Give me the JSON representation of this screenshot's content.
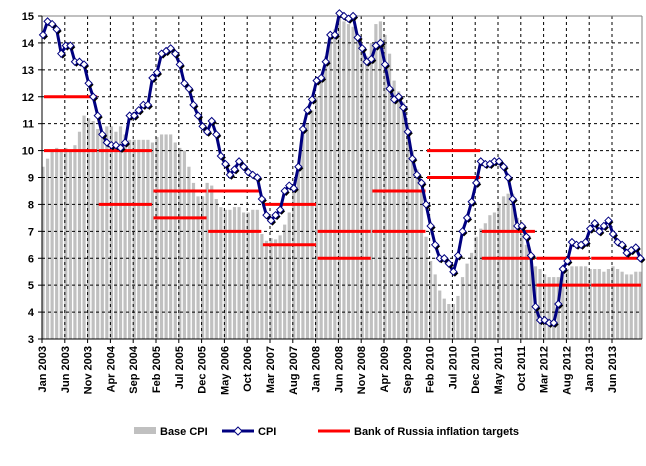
{
  "chart_data": {
    "type": "bar+line",
    "title": "",
    "xlabel": "",
    "ylabel": "",
    "ylim": [
      3,
      15
    ],
    "yticks": [
      3,
      4,
      5,
      6,
      7,
      8,
      9,
      10,
      11,
      12,
      13,
      14,
      15
    ],
    "grid": true,
    "legend_position": "bottom",
    "start": "Jan 2003",
    "x_tick_labels": [
      "Jan 2003",
      "Jun 2003",
      "Nov 2003",
      "Apr 2004",
      "Sep 2004",
      "Feb 2005",
      "Jul 2005",
      "Dec 2005",
      "May 2006",
      "Oct 2006",
      "Mar 2007",
      "Aug 2007",
      "Jan 2008",
      "Jun 2008",
      "Nov 2008",
      "Apr 2009",
      "Sep 2009",
      "Feb 2010",
      "Jul 2010",
      "Dec 2010",
      "May 2011",
      "Oct 2011",
      "Mar 2012",
      "Aug 2012",
      "Jan 2013",
      "Jun 2013"
    ],
    "series": [
      {
        "name": "Base CPI",
        "type": "bar",
        "color": "#c0c0c0",
        "values": [
          9.4,
          9.7,
          10.0,
          10.1,
          10.0,
          10.1,
          10.0,
          10.2,
          10.7,
          11.3,
          11.2,
          11.1,
          10.8,
          10.5,
          10.9,
          10.9,
          10.7,
          10.9,
          10.6,
          10.4,
          10.4,
          10.4,
          10.4,
          10.4,
          10.3,
          10.5,
          10.6,
          10.6,
          10.6,
          10.3,
          10.1,
          10.0,
          9.4,
          8.8,
          8.3,
          8.3,
          8.8,
          8.7,
          8.2,
          7.9,
          7.8,
          7.8,
          7.9,
          7.9,
          7.7,
          7.7,
          7.8,
          7.8,
          6.9,
          6.65,
          6.75,
          6.7,
          6.85,
          7.25,
          7.7,
          8.6,
          9.3,
          10.8,
          11.0,
          11.5,
          12.0,
          12.6,
          13.5,
          14.1,
          14.5,
          15.0,
          14.8,
          14.7,
          14.6,
          14.2,
          13.7,
          13.5,
          14.0,
          14.7,
          14.8,
          14.3,
          13.6,
          12.6,
          12.2,
          11.8,
          11.0,
          10.0,
          9.3,
          8.5,
          6.8,
          5.9,
          5.4,
          4.8,
          4.5,
          4.3,
          4.3,
          4.6,
          5.3,
          5.8,
          6.2,
          6.8,
          7.1,
          7.3,
          7.6,
          7.7,
          8.0,
          8.3,
          8.4,
          8.4,
          7.5,
          6.9,
          6.5,
          6.2,
          5.7,
          5.6,
          5.4,
          5.3,
          5.3,
          5.3,
          5.5,
          5.6,
          5.7,
          5.7,
          5.7,
          5.7,
          5.6,
          5.6,
          5.6,
          5.5,
          5.6,
          5.7,
          5.6,
          5.5,
          5.4,
          5.4,
          5.5,
          5.5
        ]
      },
      {
        "name": "CPI",
        "type": "line",
        "color": "#000080",
        "values": [
          14.3,
          14.8,
          14.7,
          14.5,
          13.6,
          13.9,
          13.9,
          13.3,
          13.3,
          13.2,
          12.5,
          12.0,
          11.3,
          10.6,
          10.3,
          10.2,
          10.2,
          10.1,
          10.3,
          11.3,
          11.3,
          11.5,
          11.7,
          11.7,
          12.7,
          12.9,
          13.6,
          13.7,
          13.8,
          13.6,
          13.2,
          12.5,
          12.3,
          11.7,
          11.3,
          10.9,
          10.7,
          11.1,
          10.6,
          9.8,
          9.5,
          9.1,
          9.3,
          9.6,
          9.4,
          9.2,
          9.1,
          9.0,
          8.2,
          7.6,
          7.4,
          7.6,
          7.8,
          8.5,
          8.7,
          8.6,
          9.4,
          10.8,
          11.5,
          11.9,
          12.6,
          12.7,
          13.3,
          14.3,
          14.3,
          15.1,
          15.0,
          14.9,
          15.0,
          14.2,
          13.8,
          13.3,
          13.4,
          13.9,
          14.0,
          13.2,
          12.3,
          11.9,
          12.0,
          11.6,
          10.7,
          9.7,
          9.1,
          8.8,
          8.0,
          7.2,
          6.5,
          6.0,
          6.0,
          5.8,
          5.5,
          6.1,
          7.0,
          7.5,
          8.1,
          8.8,
          9.6,
          9.5,
          9.5,
          9.6,
          9.6,
          9.4,
          9.0,
          8.2,
          7.2,
          7.2,
          6.8,
          6.1,
          4.2,
          3.7,
          3.7,
          3.6,
          3.6,
          4.3,
          5.6,
          5.9,
          6.6,
          6.5,
          6.5,
          6.6,
          7.1,
          7.3,
          7.0,
          7.2,
          7.4,
          6.9,
          6.6,
          6.5,
          6.2,
          6.3,
          6.4,
          6.0
        ]
      },
      {
        "name": "Bank of Russia inflation targets",
        "type": "range",
        "color": "#ff0000",
        "ranges": [
          {
            "year": 2003,
            "low": 10,
            "high": 12
          },
          {
            "year": 2004,
            "low": 8,
            "high": 10
          },
          {
            "year": 2005,
            "low": 7.5,
            "high": 8.5
          },
          {
            "year": 2006,
            "low": 7,
            "high": 8.5
          },
          {
            "year": 2007,
            "low": 6.5,
            "high": 8
          },
          {
            "year": 2008,
            "low": 6,
            "high": 7
          },
          {
            "year": 2009,
            "low": 7,
            "high": 8.5
          },
          {
            "year": 2010,
            "low": 9,
            "high": 10
          },
          {
            "year": 2011,
            "low": 6,
            "high": 7
          },
          {
            "year": 2012,
            "low": 5,
            "high": 6
          },
          {
            "year": 2013,
            "low": 5,
            "high": 6
          }
        ]
      }
    ]
  }
}
